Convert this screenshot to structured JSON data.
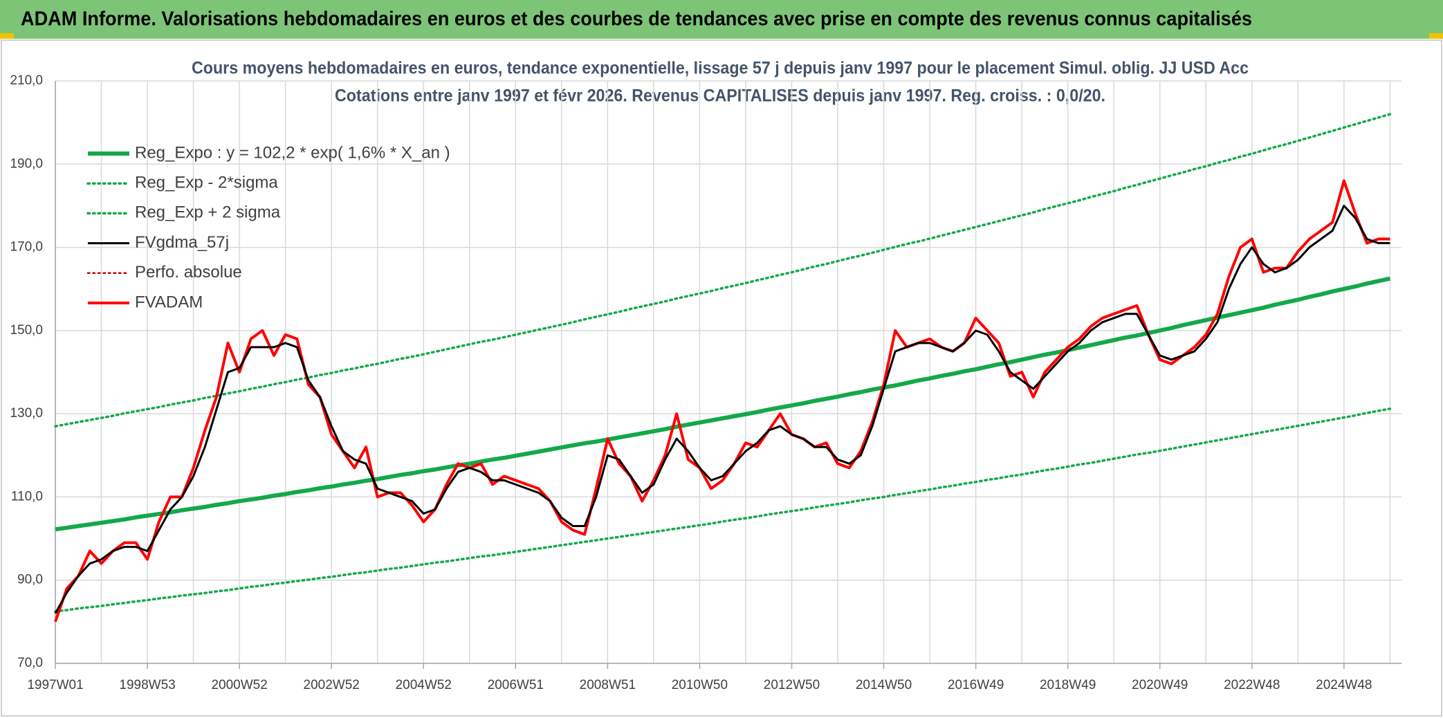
{
  "chart_data": {
    "type": "line",
    "title": "ADAM Informe. Valorisations hebdomadaires en euros et des courbes de tendances avec prise en compte des revenus connus capitalisés",
    "subtitle": [
      "Cours moyens hebdomadaires en euros, tendance exponentielle, lissage 57 j depuis janv 1997 pour le placement Simul. oblig. JJ USD Acc",
      "Cotations entre janv 1997 et févr 2026. Revenus CAPITALISES depuis janv 1997. Reg. croiss. : 0,0/20."
    ],
    "categories": [
      "1997W01",
      null,
      null,
      null,
      null,
      null,
      null,
      null,
      "1998W53",
      null,
      null,
      null,
      null,
      null,
      null,
      null,
      "2000W52",
      null,
      null,
      null,
      null,
      null,
      null,
      null,
      "2002W52",
      null,
      null,
      null,
      null,
      null,
      null,
      null,
      "2004W52",
      null,
      null,
      null,
      null,
      null,
      null,
      null,
      "2006W51",
      null,
      null,
      null,
      null,
      null,
      null,
      null,
      "2008W51",
      null,
      null,
      null,
      null,
      null,
      null,
      null,
      "2010W50",
      null,
      null,
      null,
      null,
      null,
      null,
      null,
      "2012W50",
      null,
      null,
      null,
      null,
      null,
      null,
      null,
      "2014W50",
      null,
      null,
      null,
      null,
      null,
      null,
      null,
      "2016W49",
      null,
      null,
      null,
      null,
      null,
      null,
      null,
      "2018W49",
      null,
      null,
      null,
      null,
      null,
      null,
      null,
      "2020W49",
      null,
      null,
      null,
      null,
      null,
      null,
      null,
      "2022W48",
      null,
      null,
      null,
      null,
      null,
      null,
      null,
      "2024W48",
      null,
      null,
      null,
      null
    ],
    "ylim": [
      70,
      210
    ],
    "yticks": [
      {
        "value": 70,
        "label": "70,0"
      },
      {
        "value": 90,
        "label": "90,0"
      },
      {
        "value": 110,
        "label": "110,0"
      },
      {
        "value": 130,
        "label": "130,0"
      },
      {
        "value": 150,
        "label": "150,0"
      },
      {
        "value": 170,
        "label": "170,0"
      },
      {
        "value": 190,
        "label": "190,0"
      },
      {
        "value": 210,
        "label": "210,0"
      }
    ],
    "grid": true,
    "legend": "upper left",
    "series": [
      {
        "name": "Reg_Expo : y = 102,2 * exp( 1,6% *  X_an )",
        "color": "#14a84a",
        "style": "solid",
        "values": [
          102.2,
          102.6,
          103.0,
          103.4,
          103.8,
          104.2,
          104.6,
          105.1,
          105.5,
          105.9,
          106.3,
          106.8,
          107.2,
          107.6,
          108.1,
          108.5,
          109.0,
          109.4,
          109.8,
          110.3,
          110.7,
          111.2,
          111.6,
          112.1,
          112.5,
          113.0,
          113.4,
          113.9,
          114.3,
          114.8,
          115.3,
          115.7,
          116.2,
          116.6,
          117.1,
          117.6,
          118.0,
          118.5,
          119.0,
          119.4,
          119.9,
          120.4,
          120.9,
          121.4,
          121.9,
          122.4,
          122.9,
          123.3,
          123.8,
          124.3,
          124.8,
          125.3,
          125.8,
          126.3,
          126.9,
          127.4,
          127.9,
          128.4,
          128.9,
          129.4,
          129.9,
          130.4,
          131.0,
          131.5,
          132.0,
          132.5,
          133.1,
          133.6,
          134.1,
          134.7,
          135.2,
          135.8,
          136.3,
          136.8,
          137.4,
          138.0,
          138.5,
          139.1,
          139.6,
          140.2,
          140.7,
          141.3,
          141.9,
          142.4,
          143.0,
          143.6,
          144.2,
          144.7,
          145.3,
          145.9,
          146.5,
          147.1,
          147.7,
          148.3,
          148.8,
          149.4,
          150.0,
          150.6,
          151.3,
          151.9,
          152.5,
          153.1,
          153.7,
          154.3,
          154.9,
          155.5,
          156.2,
          156.8,
          157.4,
          158.1,
          158.7,
          159.4,
          160.0,
          160.6,
          161.3,
          161.9,
          162.5
        ]
      },
      {
        "name": "Reg_Exp - 2*sigma",
        "color": "#14a84a",
        "style": "dotted",
        "values": [
          82.5,
          82.8,
          83.2,
          83.5,
          83.8,
          84.2,
          84.5,
          84.9,
          85.2,
          85.6,
          85.9,
          86.3,
          86.6,
          86.9,
          87.3,
          87.6,
          88.0,
          88.4,
          88.7,
          89.1,
          89.4,
          89.8,
          90.1,
          90.5,
          90.8,
          91.2,
          91.6,
          91.9,
          92.3,
          92.7,
          93.0,
          93.4,
          93.8,
          94.2,
          94.5,
          94.9,
          95.3,
          95.7,
          96.0,
          96.4,
          96.8,
          97.2,
          97.6,
          98.0,
          98.4,
          98.8,
          99.2,
          99.6,
          100.0,
          100.4,
          100.8,
          101.2,
          101.6,
          102.0,
          102.4,
          102.8,
          103.2,
          103.6,
          104.1,
          104.5,
          104.9,
          105.3,
          105.8,
          106.2,
          106.6,
          107.0,
          107.5,
          107.9,
          108.3,
          108.7,
          109.2,
          109.6,
          110.0,
          110.5,
          110.9,
          111.4,
          111.8,
          112.3,
          112.7,
          113.2,
          113.6,
          114.1,
          114.5,
          115.0,
          115.4,
          115.9,
          116.4,
          116.8,
          117.3,
          117.8,
          118.2,
          118.7,
          119.2,
          119.7,
          120.2,
          120.6,
          121.1,
          121.6,
          122.1,
          122.6,
          123.1,
          123.6,
          124.1,
          124.6,
          125.1,
          125.6,
          126.1,
          126.6,
          127.1,
          127.6,
          128.1,
          128.6,
          129.1,
          129.6,
          130.2,
          130.7,
          131.2
        ]
      },
      {
        "name": "Reg_Exp + 2 sigma",
        "color": "#14a84a",
        "style": "dotted",
        "values": [
          127.0,
          127.5,
          128.0,
          128.5,
          129.0,
          129.5,
          130.1,
          130.6,
          131.1,
          131.6,
          132.2,
          132.7,
          133.2,
          133.8,
          134.3,
          134.9,
          135.4,
          136.0,
          136.5,
          137.1,
          137.6,
          138.2,
          138.7,
          139.3,
          139.8,
          140.4,
          140.9,
          141.5,
          142.0,
          142.6,
          143.2,
          143.7,
          144.3,
          144.9,
          145.5,
          146.1,
          146.7,
          147.3,
          147.8,
          148.4,
          149.0,
          149.6,
          150.2,
          150.8,
          151.4,
          152.0,
          152.7,
          153.3,
          153.9,
          154.5,
          155.2,
          155.8,
          156.4,
          157.0,
          157.7,
          158.3,
          158.9,
          159.5,
          160.2,
          160.8,
          161.4,
          162.1,
          162.7,
          163.4,
          164.0,
          164.7,
          165.4,
          166.0,
          166.7,
          167.4,
          168.0,
          168.7,
          169.4,
          170.1,
          170.8,
          171.4,
          172.1,
          172.8,
          173.5,
          174.2,
          174.9,
          175.6,
          176.3,
          177.0,
          177.7,
          178.4,
          179.2,
          179.9,
          180.6,
          181.3,
          182.1,
          182.8,
          183.5,
          184.3,
          185.0,
          185.8,
          186.5,
          187.3,
          188.0,
          188.8,
          189.5,
          190.3,
          191.0,
          191.8,
          192.5,
          193.3,
          194.1,
          194.8,
          195.6,
          196.4,
          197.2,
          198.0,
          198.8,
          199.6,
          200.4,
          201.2,
          202.0
        ]
      },
      {
        "name": "FVgdma_57j",
        "color": "#000000",
        "style": "solid",
        "values": [
          82,
          87,
          91,
          94,
          95,
          97,
          98,
          98,
          97,
          102,
          107,
          110,
          115,
          122,
          131,
          140,
          141,
          146,
          146,
          146,
          147,
          146,
          138,
          134,
          127,
          121,
          119,
          118,
          112,
          111,
          110,
          109,
          106,
          107,
          112,
          116,
          117,
          116,
          114,
          114,
          113,
          112,
          111,
          109,
          105,
          103,
          103,
          110,
          120,
          119,
          115,
          111,
          113,
          119,
          124,
          121,
          117,
          114,
          115,
          118,
          121,
          123,
          126,
          127,
          125,
          124,
          122,
          122,
          119,
          118,
          120,
          127,
          136,
          145,
          146,
          147,
          147,
          146,
          145,
          147,
          150,
          149,
          145,
          140,
          138,
          136,
          139,
          142,
          145,
          147,
          150,
          152,
          153,
          154,
          154,
          149,
          144,
          143,
          144,
          145,
          148,
          152,
          160,
          166,
          170,
          166,
          164,
          165,
          167,
          170,
          172,
          174,
          180,
          177,
          172,
          171,
          171
        ]
      },
      {
        "name": "Perfo. absolue",
        "color": "#c00000",
        "style": "dotted",
        "values": [
          null,
          null,
          null,
          null,
          null,
          null,
          null,
          null,
          null,
          null,
          null,
          null,
          null,
          null,
          null,
          null,
          null,
          null,
          null,
          null,
          null,
          null,
          null,
          null,
          null,
          null,
          null,
          null,
          null,
          null,
          null,
          null,
          null,
          null,
          null,
          null,
          null,
          null,
          null,
          null,
          null,
          null,
          null,
          null,
          null,
          null,
          null,
          null,
          null,
          null,
          null,
          null,
          null,
          null,
          null,
          null,
          null,
          null,
          null,
          null,
          null,
          null,
          null,
          null,
          null,
          null,
          null,
          null,
          null,
          null,
          null,
          null,
          null,
          null,
          null,
          null,
          null,
          null,
          null,
          null,
          null,
          null,
          null,
          null,
          null,
          null,
          null,
          null,
          null,
          null,
          null,
          null,
          null,
          null,
          null,
          null,
          null,
          null,
          null,
          null,
          null,
          null,
          null,
          null,
          null,
          null,
          null,
          null,
          null,
          null,
          null,
          null,
          null,
          null,
          null,
          null,
          null
        ]
      },
      {
        "name": "FVADAM",
        "color": "#ff0000",
        "style": "solid",
        "values": [
          80,
          88,
          91,
          97,
          94,
          97,
          99,
          99,
          95,
          104,
          110,
          110,
          117,
          126,
          134,
          147,
          140,
          148,
          150,
          144,
          149,
          148,
          137,
          134,
          125,
          121,
          117,
          122,
          110,
          111,
          111,
          108,
          104,
          107,
          113,
          118,
          117,
          118,
          113,
          115,
          114,
          113,
          112,
          109,
          104,
          102,
          101,
          112,
          124,
          118,
          115,
          109,
          114,
          120,
          130,
          119,
          117,
          112,
          114,
          118,
          123,
          122,
          126,
          130,
          125,
          124,
          122,
          123,
          118,
          117,
          121,
          128,
          137,
          150,
          146,
          147,
          148,
          146,
          145,
          147,
          153,
          150,
          147,
          139,
          140,
          134,
          140,
          143,
          146,
          148,
          151,
          153,
          154,
          155,
          156,
          149,
          143,
          142,
          144,
          146,
          149,
          154,
          163,
          170,
          172,
          164,
          165,
          165,
          169,
          172,
          174,
          176,
          186,
          178,
          171,
          172,
          172
        ]
      }
    ]
  }
}
